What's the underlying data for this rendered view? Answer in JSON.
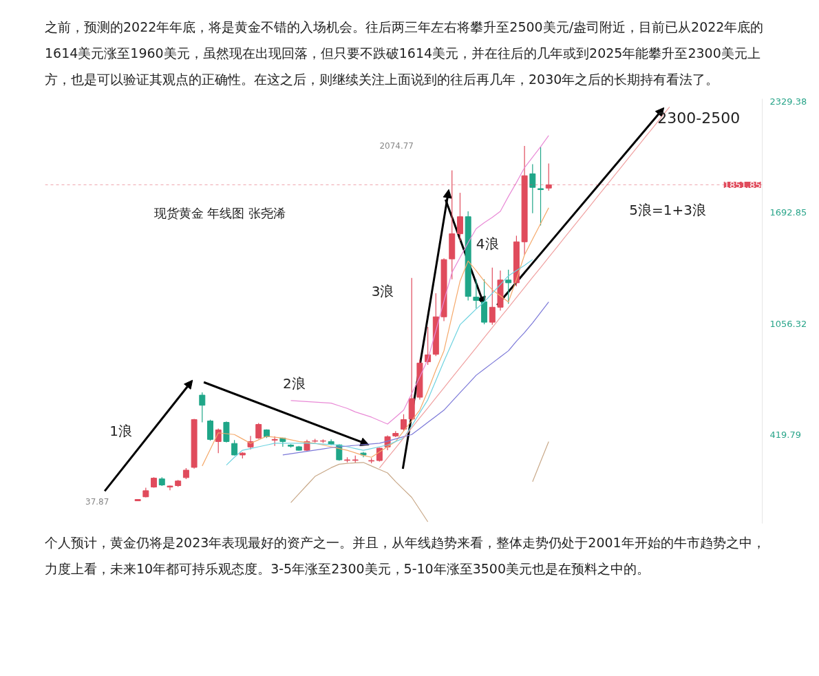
{
  "chart_data": {
    "type": "candlestick",
    "categories": [
      null,
      null,
      null,
      null,
      null,
      null,
      null,
      null,
      null,
      null,
      null,
      null,
      null,
      null,
      null,
      null,
      null,
      null,
      null,
      null,
      null,
      null,
      null,
      null,
      null,
      null,
      null,
      null,
      null,
      null,
      null,
      null,
      null,
      null,
      null,
      null,
      null,
      null,
      null,
      null,
      null,
      null,
      null,
      null,
      null,
      null,
      null,
      null,
      null,
      null,
      null,
      null,
      null,
      null,
      null,
      null,
      null,
      null,
      null,
      null,
      null,
      null,
      null,
      null,
      null,
      null,
      null,
      null,
      null,
      null,
      null,
      null,
      null,
      null,
      null,
      null,
      null,
      null,
      null,
      null,
      null,
      null,
      null,
      null,
      null,
      null,
      null,
      null,
      null
    ],
    "ohlc": [
      null,
      null,
      null,
      null,
      null,
      null,
      null,
      null,
      null,
      null,
      null,
      [
        40,
        50,
        37.87,
        48
      ],
      [
        63,
        115,
        60,
        98
      ],
      [
        119,
        175,
        115,
        170
      ],
      [
        166,
        175,
        125,
        131
      ],
      [
        119,
        128,
        100,
        125
      ],
      [
        127,
        160,
        120,
        154
      ],
      [
        173,
        228,
        165,
        216
      ],
      [
        232,
        510,
        225,
        506
      ],
      [
        646,
        662,
        490,
        588
      ],
      [
        498,
        505,
        385,
        392
      ],
      [
        380,
        455,
        314,
        447
      ],
      [
        490,
        495,
        375,
        380
      ],
      [
        369,
        389,
        300,
        303
      ],
      [
        303,
        318,
        283,
        314
      ],
      [
        349,
        412,
        334,
        380
      ],
      [
        400,
        486,
        395,
        478
      ],
      [
        447,
        450,
        400,
        408
      ],
      [
        388,
        410,
        355,
        392
      ],
      [
        400,
        402,
        350,
        380
      ],
      [
        360,
        365,
        345,
        353
      ],
      [
        350,
        355,
        328,
        330
      ],
      [
        330,
        390,
        325,
        380
      ],
      [
        382,
        395,
        375,
        384
      ],
      [
        382,
        392,
        372,
        384
      ],
      [
        380,
        392,
        360,
        365
      ],
      [
        361,
        365,
        270,
        275
      ],
      [
        272,
        290,
        260,
        275
      ],
      [
        272,
        300,
        255,
        275
      ],
      [
        314,
        320,
        290,
        303
      ],
      [
        268,
        285,
        255,
        271
      ],
      [
        271,
        345,
        265,
        342
      ],
      [
        349,
        415,
        330,
        408
      ],
      [
        412,
        440,
        405,
        427
      ],
      [
        451,
        537,
        440,
        506
      ],
      [
        509,
        1318,
        500,
        626
      ],
      [
        634,
        850,
        620,
        830
      ],
      [
        837,
        1037,
        820,
        877
      ],
      [
        880,
        1230,
        870,
        1095
      ],
      [
        1095,
        1430,
        1070,
        1423
      ],
      [
        1427,
        1935,
        1310,
        1571
      ],
      [
        1571,
        1806,
        1530,
        1669
      ],
      [
        1669,
        1700,
        1189,
        1212
      ],
      [
        1208,
        1310,
        1142,
        1189
      ],
      [
        1181,
        1310,
        1052,
        1064
      ],
      [
        1064,
        1377,
        1050,
        1150
      ],
      [
        1150,
        1360,
        1130,
        1306
      ],
      [
        1306,
        1365,
        1170,
        1290
      ],
      [
        1290,
        1560,
        1270,
        1525
      ],
      [
        1525,
        2074.77,
        1450,
        1904
      ],
      [
        1915,
        1970,
        1689,
        1837
      ],
      [
        1830,
        2070,
        1619,
        1824
      ],
      [
        1833,
        1974,
        1818,
        1852
      ],
      null,
      null,
      null,
      null,
      null,
      null,
      null,
      null,
      null,
      null,
      null,
      null,
      null,
      null,
      null,
      null,
      null,
      null,
      null,
      null,
      null,
      null,
      null,
      null,
      null,
      null
    ],
    "colors": [
      null,
      null,
      null,
      null,
      null,
      null,
      null,
      null,
      null,
      null,
      null,
      "#e04b5c",
      "#e04b5c",
      "#e04b5c",
      "#1fa688",
      "#e04b5c",
      "#e04b5c",
      "#e04b5c",
      "#e04b5c",
      "#1fa688",
      "#1fa688",
      "#e04b5c",
      "#1fa688",
      "#1fa688",
      "#e04b5c",
      "#e04b5c",
      "#e04b5c",
      "#1fa688",
      "#e04b5c",
      "#1fa688",
      "#1fa688",
      "#1fa688",
      "#e04b5c",
      "#e04b5c",
      "#e04b5c",
      "#1fa688",
      "#1fa688",
      "#e04b5c",
      "#e04b5c",
      "#1fa688",
      "#e04b5c",
      "#e04b5c",
      "#e04b5c",
      "#e04b5c",
      "#e04b5c",
      "#e04b5c",
      "#e04b5c",
      "#e04b5c",
      "#e04b5c",
      "#e04b5c",
      "#e04b5c",
      "#e04b5c",
      "#1fa688",
      "#1fa688",
      "#1fa688",
      "#e04b5c",
      "#e04b5c",
      "#1fa688",
      "#e04b5c",
      "#e04b5c",
      "#1fa688",
      "#1fa688",
      "#e04b5c",
      null,
      null,
      null,
      null,
      null,
      null,
      null,
      null,
      null,
      null,
      null,
      null,
      null,
      null,
      null,
      null,
      null,
      null,
      null,
      null,
      null,
      null,
      null,
      null,
      null,
      null
    ],
    "series": [
      {
        "type": "line",
        "color": "#f5a96b",
        "values": [
          null,
          null,
          null,
          null,
          null,
          null,
          null,
          null,
          null,
          null,
          null,
          null,
          null,
          null,
          null,
          null,
          null,
          null,
          null,
          240,
          335,
          430,
          425,
          420,
          395,
          370,
          390,
          410,
          405,
          400,
          390,
          380,
          375,
          370,
          360,
          350,
          340,
          330,
          315,
          300,
          290,
          320,
          350,
          380,
          440,
          500,
          560,
          670,
          790,
          900,
          1100,
          1300,
          1415,
          1360,
          1300,
          1250,
          1215,
          1180,
          1310,
          1450,
          1540,
          1630,
          1720,
          null,
          null,
          null,
          null,
          null,
          null,
          null,
          null,
          null,
          null,
          null,
          null,
          null,
          null,
          null,
          null,
          null,
          null,
          null,
          null,
          null,
          null,
          null,
          null,
          null,
          null
        ]
      },
      {
        "type": "line",
        "color": "#6fd3e0",
        "values": [
          null,
          null,
          null,
          null,
          null,
          null,
          null,
          null,
          null,
          null,
          null,
          null,
          null,
          null,
          null,
          null,
          null,
          null,
          null,
          null,
          null,
          null,
          245,
          290,
          330,
          340,
          350,
          360,
          370,
          370,
          370,
          370,
          370,
          368,
          365,
          362,
          360,
          350,
          340,
          330,
          340,
          350,
          360,
          380,
          400,
          470,
          545,
          620,
          730,
          840,
          945,
          1050,
          1095,
          1140,
          1180,
          1230,
          1280,
          1330,
          1360,
          1390,
          1423,
          null,
          null,
          null,
          null,
          null,
          null,
          null,
          null,
          null,
          null,
          null,
          null,
          null,
          null,
          null,
          null,
          null,
          null,
          null,
          null,
          null,
          null,
          null,
          null,
          null,
          null,
          null,
          null
        ]
      },
      {
        "type": "line",
        "color": "#7b78d8",
        "values": [
          null,
          null,
          null,
          null,
          null,
          null,
          null,
          null,
          null,
          null,
          null,
          null,
          null,
          null,
          null,
          null,
          null,
          null,
          null,
          null,
          null,
          null,
          null,
          null,
          null,
          null,
          null,
          null,
          null,
          303,
          310,
          317,
          324,
          331,
          338,
          345,
          350,
          354,
          358,
          362,
          366,
          370,
          382,
          395,
          408,
          420,
          455,
          490,
          525,
          560,
          610,
          660,
          710,
          760,
          795,
          830,
          865,
          900,
          955,
          1005,
          1060,
          1120,
          1180,
          null,
          null,
          null,
          null,
          null,
          null,
          null,
          null,
          null,
          null,
          null,
          null,
          null,
          null,
          null,
          null,
          null,
          null,
          null,
          null,
          null,
          null,
          null,
          null,
          null,
          null
        ]
      },
      {
        "type": "line",
        "color": "#e98ad6",
        "values": [
          null,
          null,
          null,
          null,
          null,
          null,
          null,
          null,
          null,
          null,
          null,
          null,
          null,
          null,
          null,
          null,
          null,
          null,
          null,
          null,
          null,
          null,
          null,
          null,
          null,
          null,
          null,
          null,
          null,
          null,
          615,
          612,
          609,
          606,
          603,
          600,
          585,
          570,
          550,
          535,
          520,
          500,
          480,
          520,
          560,
          655,
          750,
          850,
          1015,
          1185,
          1350,
          1435,
          1520,
          1600,
          1635,
          1665,
          1700,
          1785,
          1865,
          1950,
          2010,
          2070,
          2134,
          null,
          null,
          null,
          null,
          null,
          null,
          null,
          null,
          null,
          null,
          null,
          null,
          null,
          null,
          null,
          null,
          null,
          null,
          null,
          null,
          null,
          null,
          null,
          null,
          null,
          null
        ]
      },
      {
        "type": "line",
        "color": "#c8a888",
        "values": [
          null,
          null,
          null,
          null,
          null,
          null,
          null,
          null,
          null,
          null,
          null,
          null,
          null,
          null,
          null,
          null,
          null,
          null,
          null,
          null,
          null,
          null,
          null,
          null,
          null,
          null,
          null,
          null,
          null,
          null,
          30,
          80,
          130,
          180,
          205,
          230,
          250,
          255,
          258,
          260,
          240,
          220,
          200,
          150,
          105,
          60,
          -10,
          -80,
          null,
          null,
          null,
          null,
          null,
          null,
          null,
          null,
          null,
          null,
          null,
          null,
          null,
          null,
          null,
          null,
          null,
          null,
          null,
          null,
          null,
          null,
          null,
          null,
          null,
          null,
          null,
          null,
          null,
          null,
          null,
          null,
          null,
          null,
          null,
          null,
          null,
          null,
          null,
          null,
          null
        ]
      },
      {
        "type": "line",
        "color": "#c8a888",
        "values": [
          null,
          null,
          null,
          null,
          null,
          null,
          null,
          null,
          null,
          null,
          null,
          null,
          null,
          null,
          null,
          null,
          null,
          null,
          null,
          null,
          null,
          null,
          null,
          null,
          null,
          null,
          null,
          null,
          null,
          null,
          null,
          null,
          null,
          null,
          null,
          null,
          null,
          null,
          null,
          null,
          null,
          null,
          null,
          null,
          null,
          null,
          null,
          null,
          null,
          null,
          null,
          null,
          null,
          null,
          null,
          null,
          null,
          null,
          null,
          null,
          150,
          265,
          380,
          null,
          null,
          null,
          null,
          null,
          null,
          null,
          null,
          null,
          null,
          null,
          null,
          null,
          null,
          null,
          null,
          null,
          null,
          null,
          null,
          null,
          null,
          null,
          null,
          null,
          null
        ]
      },
      {
        "type": "line",
        "color": "#f0a0a0",
        "values": [
          null,
          null,
          null,
          null,
          null,
          null,
          null,
          null,
          null,
          null,
          null,
          null,
          null,
          null,
          null,
          null,
          null,
          null,
          null,
          null,
          null,
          null,
          null,
          null,
          null,
          null,
          null,
          null,
          null,
          null,
          null,
          null,
          null,
          null,
          null,
          null,
          null,
          null,
          null,
          null,
          null,
          228,
          286,
          343,
          401,
          458,
          516,
          573,
          631,
          688,
          746,
          803,
          861,
          918,
          976,
          1033,
          1091,
          1148,
          1206,
          1263,
          1321,
          1378,
          1436,
          1493,
          1551,
          1608,
          1666,
          1723,
          1781,
          1838,
          1896,
          1953,
          2011,
          2068,
          2126,
          2183,
          2241,
          2298,
          null,
          null,
          null,
          null,
          null,
          null,
          null,
          null,
          null,
          null,
          null
        ]
      }
    ],
    "ylim": [
      -90,
      2345
    ],
    "yticks": [
      419.79,
      1056.32,
      1692.85,
      2329.38
    ],
    "ref_lines": [
      {
        "axis": "y",
        "value": 1851.85,
        "label": "1851.85",
        "color": "#e04b5c",
        "line_style": "dashed"
      }
    ],
    "annotations": [
      "之前，预测的2022年年底，将是黄金不错的入场机会。往后两三年左右将攀升至2500美元/盎司附近，目前已从2022年底的1614美元涨至1960美元，虽然现在出现回落，但只要不跌破1614美元，并在往后的几年或到2025年能攀升至2300美元上方，也是可以验证其观点的正确性。在这之后，则继续关注上面说到的往后再几年，2030年之后的长期持有看法了。",
      "现货黄金 年线图 张尧浠",
      "1浪",
      "2浪",
      "3浪",
      "4浪",
      "5浪=1+3浪",
      "2300-2500",
      "37.87",
      "2074.77",
      "个人预计，黄金仍将是2023年表现最好的资产之一。并且，从年线趋势来看，整体走势仍处于2001年开始的牛市趋势之中，力度上看，未来10年都可持乐观态度。3-5年涨至2300美元，5-10年涨至3500美元也是在预料之中的。"
    ],
    "grid": false,
    "marker": "none",
    "line_style": "solid"
  }
}
